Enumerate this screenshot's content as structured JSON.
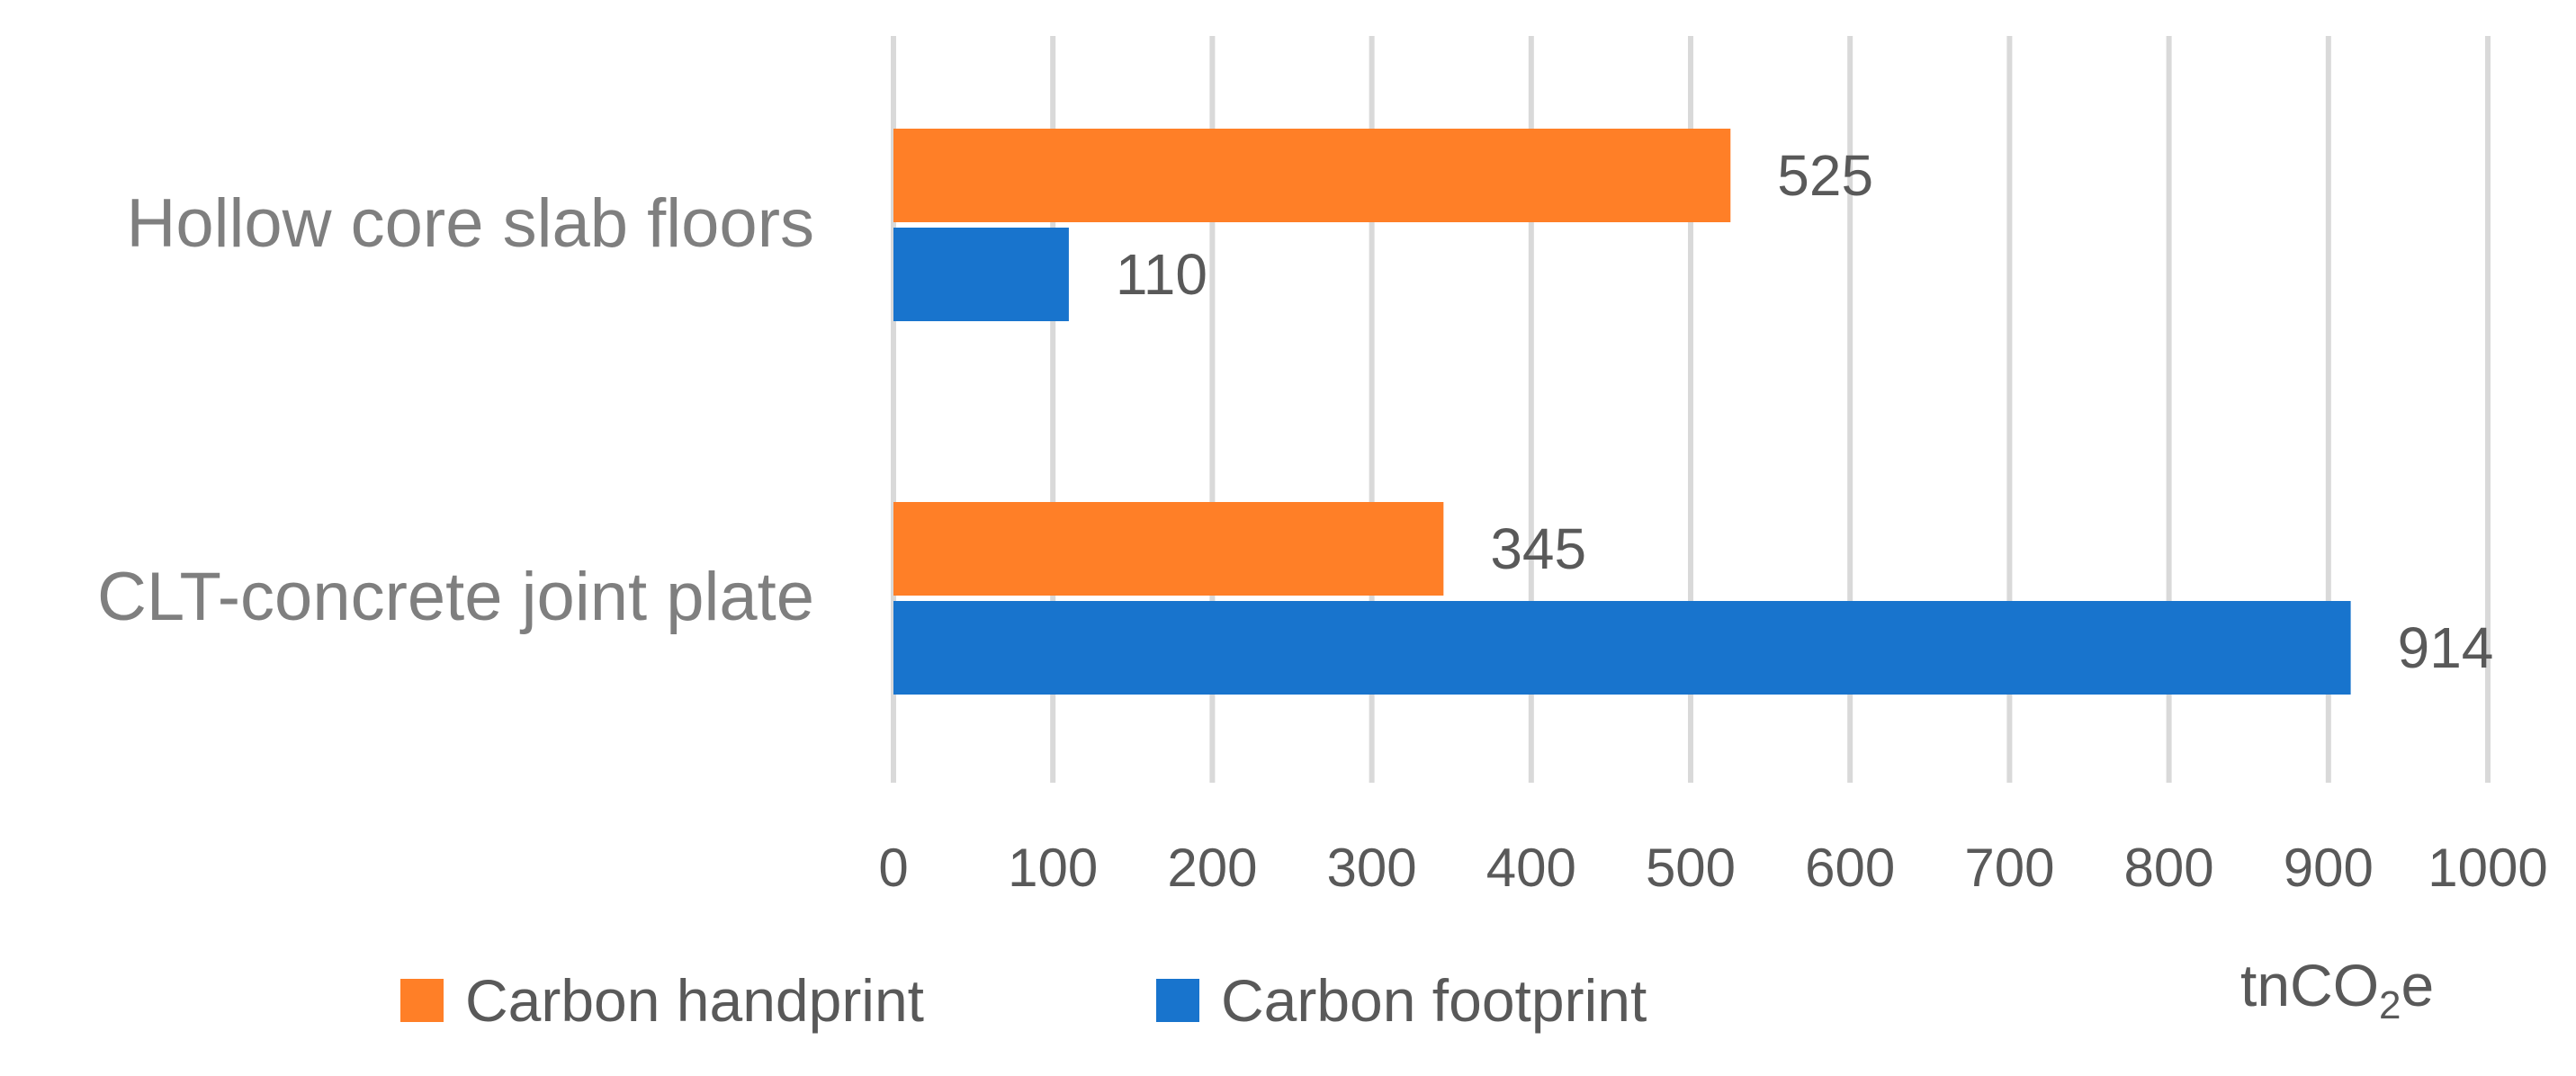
{
  "chart_data": {
    "type": "bar",
    "orientation": "horizontal",
    "categories": [
      "Hollow core slab floors",
      "CLT-concrete joint plate"
    ],
    "series": [
      {
        "name": "Carbon handprint",
        "color": "#FF7F27",
        "values": [
          525,
          345
        ]
      },
      {
        "name": "Carbon footprint",
        "color": "#1874CD",
        "values": [
          110,
          914
        ]
      }
    ],
    "xlim": [
      0,
      1000
    ],
    "x_ticks": [
      "0",
      "100",
      "200",
      "300",
      "400",
      "500",
      "600",
      "700",
      "800",
      "900",
      "1000"
    ],
    "unit_label": {
      "main": "tnCO",
      "sub": "2",
      "tail": "e"
    },
    "grid": "vertical",
    "legend_position": "bottom",
    "data_labels": true
  },
  "colors": {
    "gridline": "#D9D9D9",
    "text": "#595959",
    "category_text": "#7F7F7F"
  }
}
